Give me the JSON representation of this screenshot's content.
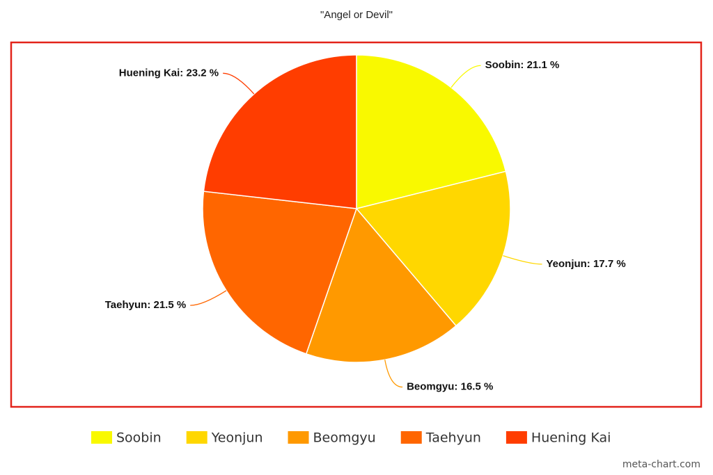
{
  "chart_data": {
    "type": "pie",
    "title": "\"Angel or Devil\"",
    "categories": [
      "Soobin",
      "Yeonjun",
      "Beomgyu",
      "Taehyun",
      "Huening Kai"
    ],
    "values": [
      21.1,
      17.7,
      16.5,
      21.5,
      23.2
    ],
    "value_labels": [
      "Soobin: 21.1 %",
      "Yeonjun: 17.7 %",
      "Beomgyu: 16.5 %",
      "Taehyun: 21.5 %",
      "Huening Kai: 23.2 %"
    ],
    "colors": [
      "#f9f900",
      "#ffd700",
      "#ff9900",
      "#ff6600",
      "#ff3d00"
    ],
    "legend": "bottom",
    "credit": "meta-chart.com"
  }
}
